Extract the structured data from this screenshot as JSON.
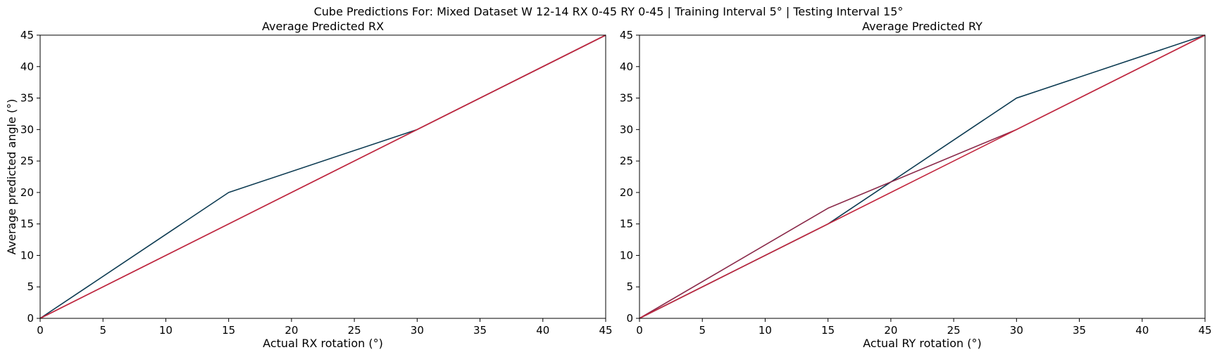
{
  "figure": {
    "suptitle": "Cube Predictions For: Mixed Dataset W 12-14 RX 0-45 RY 0-45 | Training Interval 5° | Testing Interval 15°"
  },
  "chart_data": [
    {
      "type": "line",
      "title": "Average Predicted RX",
      "xlabel": "Actual RX rotation (°)",
      "ylabel": "Average predicted angle (°)",
      "xlim": [
        0,
        45
      ],
      "ylim": [
        0,
        45
      ],
      "xticks": [
        0,
        5,
        10,
        15,
        20,
        25,
        30,
        35,
        40,
        45
      ],
      "yticks": [
        0,
        5,
        10,
        15,
        20,
        25,
        30,
        35,
        40,
        45
      ],
      "grid": false,
      "series": [
        {
          "x": [
            0,
            15,
            30,
            45
          ],
          "y": [
            0,
            20,
            30,
            45
          ],
          "color": "#0d3b52"
        },
        {
          "x": [
            0,
            15,
            30,
            45
          ],
          "y": [
            0,
            15,
            30,
            45
          ],
          "color": "#8a2a4a"
        },
        {
          "x": [
            0,
            45
          ],
          "y": [
            0,
            45
          ],
          "color": "#c3273f"
        }
      ]
    },
    {
      "type": "line",
      "title": "Average Predicted RY",
      "xlabel": "Actual RY rotation (°)",
      "ylabel": "",
      "xlim": [
        0,
        45
      ],
      "ylim": [
        0,
        45
      ],
      "xticks": [
        0,
        5,
        10,
        15,
        20,
        25,
        30,
        35,
        40,
        45
      ],
      "yticks": [
        0,
        5,
        10,
        15,
        20,
        25,
        30,
        35,
        40,
        45
      ],
      "grid": false,
      "series": [
        {
          "x": [
            0,
            15,
            30,
            45
          ],
          "y": [
            0,
            15,
            35,
            45
          ],
          "color": "#0d3b52"
        },
        {
          "x": [
            0,
            15,
            30,
            45
          ],
          "y": [
            0,
            17.5,
            30,
            45
          ],
          "color": "#8a2a4a"
        },
        {
          "x": [
            0,
            45
          ],
          "y": [
            0,
            45
          ],
          "color": "#c3273f"
        }
      ]
    }
  ]
}
